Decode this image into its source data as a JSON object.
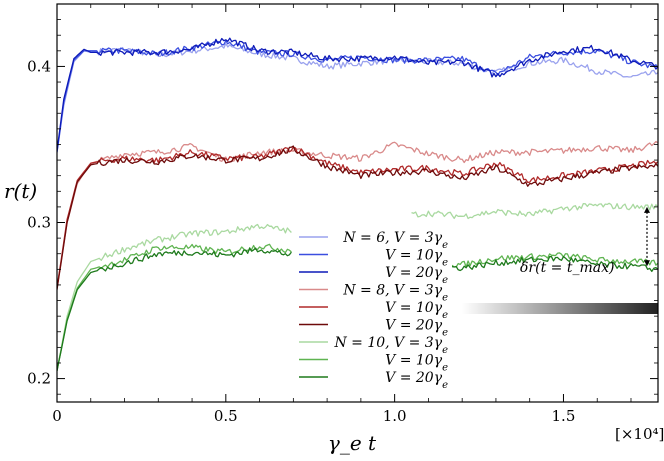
{
  "chart_data": {
    "type": "line",
    "title": "",
    "xlabel": "γ_e t",
    "ylabel": "r(t)",
    "x_multiplier_label": "[×10⁴]",
    "xlim": [
      0,
      1.78
    ],
    "ylim": [
      0.185,
      0.44
    ],
    "x_ticks": [
      0,
      0.5,
      1.0,
      1.5
    ],
    "x_tick_labels": [
      "0",
      "0.5",
      "1.0",
      "1.5"
    ],
    "y_ticks": [
      0.2,
      0.3,
      0.4
    ],
    "y_tick_labels": [
      "0.2",
      "0.3",
      "0.4"
    ],
    "grid": false,
    "legend_placement": "center",
    "annotation": "δr(t = t_max)",
    "annotation_range": [
      0.272,
      0.31
    ],
    "series": [
      {
        "name": "N = 6, V = 3γ_e",
        "label_pre": "N = 6, V = 3γ",
        "label_sub": "e",
        "color": "#9aa2ee",
        "group": 0,
        "x": [
          0,
          0.02,
          0.05,
          0.08,
          0.1,
          0.2,
          0.3,
          0.4,
          0.5,
          0.6,
          0.7,
          0.8,
          0.9,
          1.0,
          1.1,
          1.2,
          1.3,
          1.4,
          1.5,
          1.6,
          1.7,
          1.78
        ],
        "y": [
          0.345,
          0.375,
          0.403,
          0.41,
          0.409,
          0.411,
          0.407,
          0.41,
          0.413,
          0.408,
          0.405,
          0.4,
          0.402,
          0.404,
          0.403,
          0.402,
          0.396,
          0.402,
          0.404,
          0.397,
          0.393,
          0.396
        ]
      },
      {
        "name": "V = 10γ_e",
        "label_pre": "V = 10γ",
        "label_sub": "e",
        "color": "#3b4fe0",
        "group": 0,
        "x": [
          0,
          0.02,
          0.05,
          0.08,
          0.1,
          0.2,
          0.3,
          0.4,
          0.5,
          0.6,
          0.7,
          0.8,
          0.9,
          1.0,
          1.1,
          1.2,
          1.3,
          1.4,
          1.5,
          1.6,
          1.7,
          1.78
        ],
        "y": [
          0.345,
          0.377,
          0.404,
          0.41,
          0.41,
          0.41,
          0.408,
          0.412,
          0.416,
          0.409,
          0.408,
          0.404,
          0.406,
          0.404,
          0.404,
          0.405,
          0.395,
          0.406,
          0.409,
          0.41,
          0.403,
          0.399
        ]
      },
      {
        "name": "V = 20γ_e",
        "label_pre": "V = 20γ",
        "label_sub": "e",
        "color": "#0d1ab8",
        "group": 0,
        "x": [
          0,
          0.02,
          0.05,
          0.08,
          0.1,
          0.2,
          0.3,
          0.4,
          0.5,
          0.6,
          0.7,
          0.8,
          0.9,
          1.0,
          1.1,
          1.2,
          1.3,
          1.4,
          1.5,
          1.6,
          1.7,
          1.78
        ],
        "y": [
          0.346,
          0.379,
          0.405,
          0.411,
          0.409,
          0.409,
          0.409,
          0.411,
          0.418,
          0.41,
          0.409,
          0.405,
          0.405,
          0.406,
          0.402,
          0.403,
          0.394,
          0.404,
          0.41,
          0.412,
          0.404,
          0.4
        ]
      },
      {
        "name": "N = 8, V = 3γ_e",
        "label_pre": "N = 8, V = 3γ",
        "label_sub": "e",
        "color": "#d98a8a",
        "group": 1,
        "x": [
          0,
          0.03,
          0.06,
          0.1,
          0.15,
          0.2,
          0.3,
          0.4,
          0.5,
          0.6,
          0.7,
          0.8,
          0.9,
          1.0,
          1.1,
          1.2,
          1.3,
          1.4,
          1.5,
          1.6,
          1.7,
          1.78
        ],
        "y": [
          0.258,
          0.3,
          0.325,
          0.338,
          0.341,
          0.344,
          0.345,
          0.349,
          0.34,
          0.345,
          0.346,
          0.343,
          0.341,
          0.35,
          0.344,
          0.34,
          0.345,
          0.345,
          0.346,
          0.348,
          0.346,
          0.351
        ]
      },
      {
        "name": "V = 10γ_e",
        "label_pre": "V = 10γ",
        "label_sub": "e",
        "color": "#b02a2a",
        "group": 1,
        "x": [
          0,
          0.03,
          0.06,
          0.1,
          0.15,
          0.2,
          0.3,
          0.4,
          0.5,
          0.6,
          0.7,
          0.8,
          0.9,
          1.0,
          1.1,
          1.2,
          1.3,
          1.4,
          1.5,
          1.6,
          1.7,
          1.78
        ],
        "y": [
          0.258,
          0.302,
          0.327,
          0.338,
          0.34,
          0.341,
          0.34,
          0.345,
          0.341,
          0.342,
          0.348,
          0.338,
          0.332,
          0.334,
          0.335,
          0.331,
          0.338,
          0.327,
          0.33,
          0.333,
          0.336,
          0.339
        ]
      },
      {
        "name": "V = 20γ_e",
        "label_pre": "V = 20γ",
        "label_sub": "e",
        "color": "#6e0a0a",
        "group": 1,
        "x": [
          0,
          0.03,
          0.06,
          0.1,
          0.15,
          0.2,
          0.3,
          0.4,
          0.5,
          0.6,
          0.7,
          0.8,
          0.9,
          1.0,
          1.1,
          1.2,
          1.3,
          1.4,
          1.5,
          1.6,
          1.7,
          1.78
        ],
        "y": [
          0.257,
          0.3,
          0.326,
          0.337,
          0.339,
          0.34,
          0.339,
          0.343,
          0.34,
          0.341,
          0.347,
          0.336,
          0.33,
          0.332,
          0.333,
          0.328,
          0.335,
          0.324,
          0.328,
          0.332,
          0.335,
          0.336
        ]
      },
      {
        "name": "N = 10, V = 3γ_e",
        "label_pre": "N = 10, V = 3γ",
        "label_sub": "e",
        "color": "#a9d9a0",
        "group": 2,
        "x": [
          0,
          0.03,
          0.06,
          0.1,
          0.15,
          0.2,
          0.3,
          0.4,
          0.5,
          0.6,
          0.7,
          1.05,
          1.1,
          1.2,
          1.3,
          1.4,
          1.5,
          1.6,
          1.7,
          1.78
        ],
        "y": [
          0.205,
          0.24,
          0.262,
          0.275,
          0.279,
          0.283,
          0.289,
          0.293,
          0.294,
          0.298,
          0.294,
          0.305,
          0.306,
          0.304,
          0.307,
          0.305,
          0.309,
          0.311,
          0.31,
          0.31
        ]
      },
      {
        "name": "V = 10γ_e",
        "label_pre": "V = 10γ",
        "label_sub": "e",
        "color": "#5fb451",
        "group": 2,
        "x": [
          0,
          0.03,
          0.06,
          0.1,
          0.15,
          0.2,
          0.3,
          0.4,
          0.5,
          0.6,
          0.7,
          1.05,
          1.1,
          1.2,
          1.3,
          1.4,
          1.5,
          1.6,
          1.7,
          1.78
        ],
        "y": [
          0.205,
          0.238,
          0.258,
          0.27,
          0.273,
          0.276,
          0.284,
          0.284,
          0.281,
          0.285,
          0.282,
          0.276,
          0.274,
          0.273,
          0.277,
          0.278,
          0.279,
          0.276,
          0.275,
          0.274
        ]
      },
      {
        "name": "V = 20γ_e",
        "label_pre": "V = 20γ",
        "label_sub": "e",
        "color": "#1e7a1c",
        "group": 2,
        "x": [
          0,
          0.03,
          0.06,
          0.1,
          0.15,
          0.2,
          0.3,
          0.4,
          0.5,
          0.6,
          0.7,
          1.05,
          1.1,
          1.2,
          1.3,
          1.4,
          1.5,
          1.6,
          1.7,
          1.78
        ],
        "y": [
          0.205,
          0.237,
          0.257,
          0.268,
          0.271,
          0.274,
          0.28,
          0.281,
          0.279,
          0.283,
          0.279,
          0.274,
          0.272,
          0.271,
          0.274,
          0.276,
          0.277,
          0.273,
          0.272,
          0.27
        ]
      }
    ]
  }
}
